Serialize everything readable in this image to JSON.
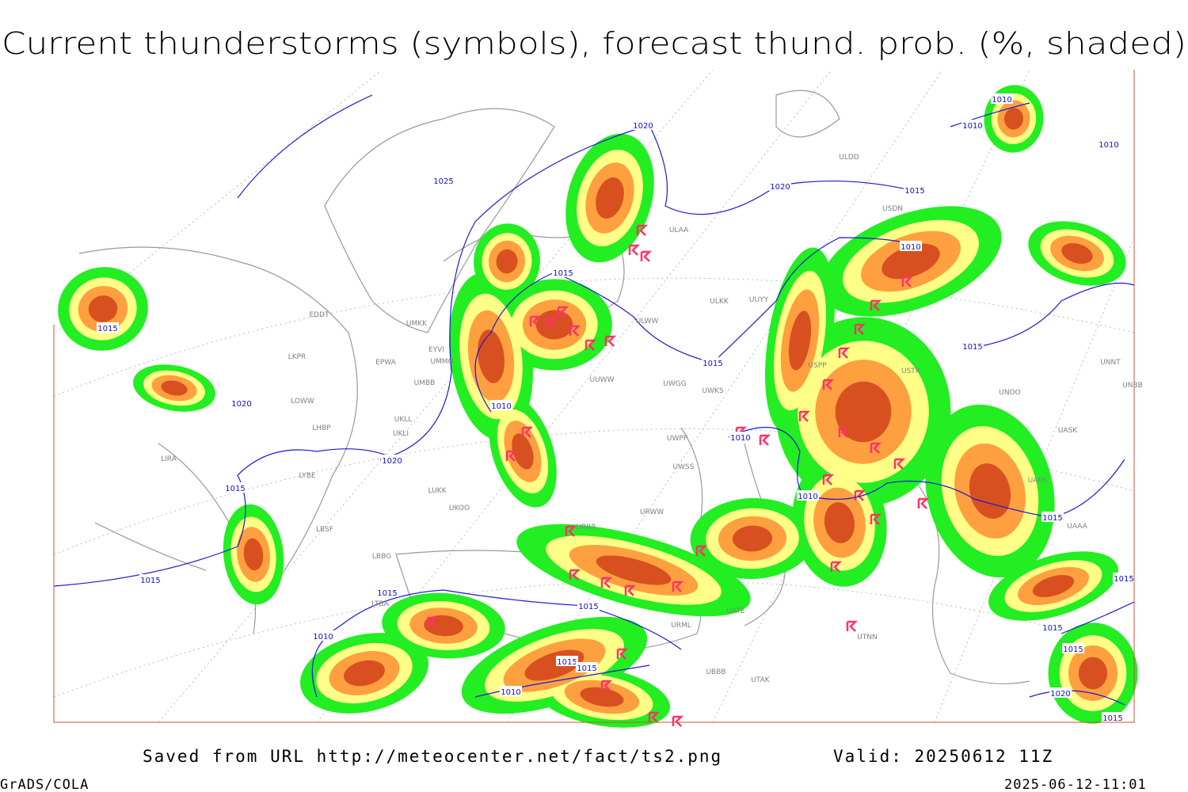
{
  "title": "Current thunderstorms (symbols), forecast thund. prob. (%, shaded)",
  "footer": {
    "source": "Saved from URL http://meteocenter.net/fact/ts2.png",
    "valid": "Valid: 20250612 11Z",
    "software": "GrADS/COLA",
    "timestamp": "2025-06-12-11:01"
  },
  "map": {
    "isobar_labels": [
      "1020",
      "1025",
      "1020",
      "1015",
      "1010",
      "1010",
      "1010",
      "1015",
      "1015",
      "1020",
      "1020",
      "1015",
      "1015",
      "1015",
      "1010",
      "1015",
      "1015",
      "1015",
      "1010",
      "1015",
      "1010",
      "1010",
      "1010",
      "1010",
      "1015",
      "1015",
      "1015",
      "1015",
      "1015",
      "1020",
      "1015"
    ],
    "station_labels": [
      "ULDD",
      "ULAA",
      "USDN",
      "ULKK",
      "UUYY",
      "ULWW",
      "EDDT",
      "UMKK",
      "EYVI",
      "EPWA",
      "UMMG",
      "LKPR",
      "UMBB",
      "LOWW",
      "LHBP",
      "UKLL",
      "UKLI",
      "LIRA",
      "LYBE",
      "LUKK",
      "UKOO",
      "LBSF",
      "LBBG",
      "LTBA",
      "UUWW",
      "UWGG",
      "UWKS",
      "UWPP",
      "UWSS",
      "URWW",
      "URRR",
      "USPP",
      "USTR",
      "UNOO",
      "UNNT",
      "UNBB",
      "UASK",
      "UAKK",
      "UAAA",
      "UATE",
      "UTAK",
      "UBBB",
      "URML",
      "UTNN"
    ]
  }
}
